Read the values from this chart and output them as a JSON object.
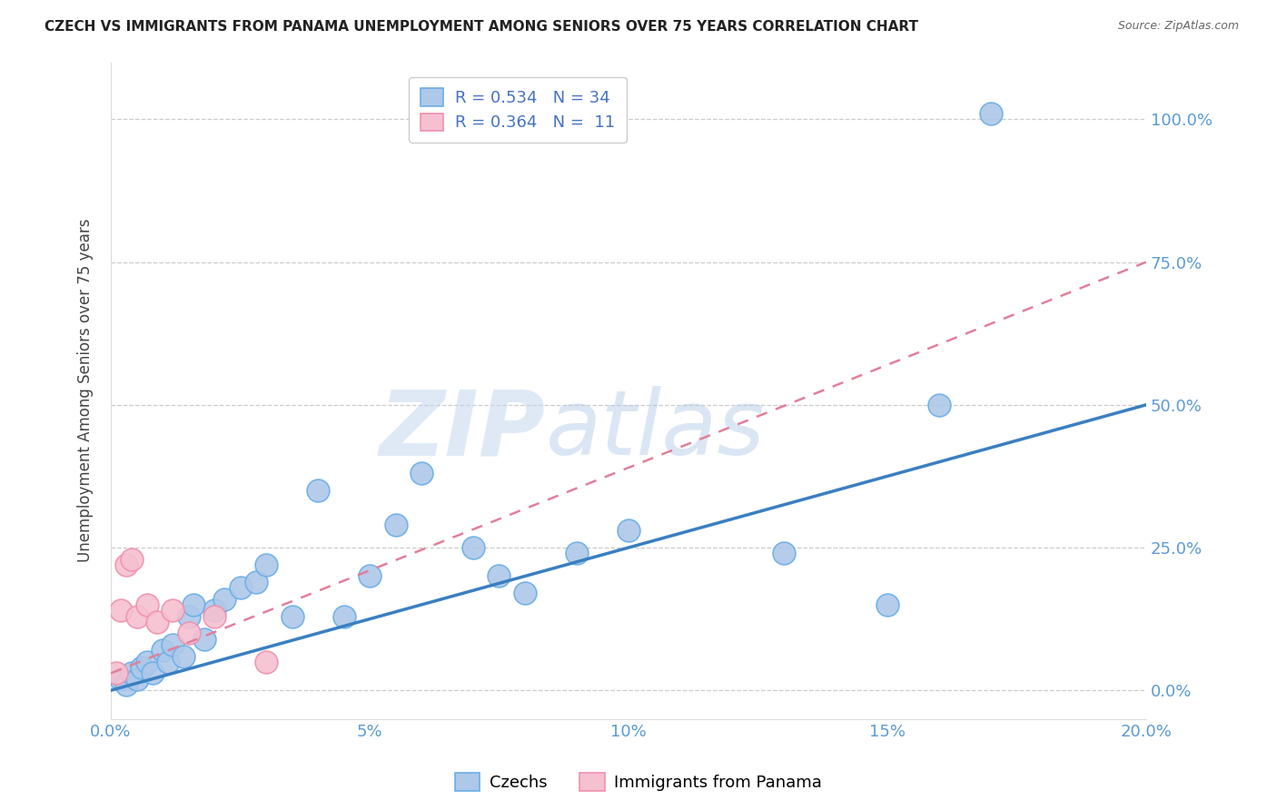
{
  "title": "CZECH VS IMMIGRANTS FROM PANAMA UNEMPLOYMENT AMONG SENIORS OVER 75 YEARS CORRELATION CHART",
  "source": "Source: ZipAtlas.com",
  "xlabel_ticks": [
    "0.0%",
    "5%",
    "10%",
    "15%",
    "20.0%"
  ],
  "xlabel_tick_vals": [
    0.0,
    5.0,
    10.0,
    15.0,
    20.0
  ],
  "ylabel": "Unemployment Among Seniors over 75 years",
  "ylabel_ticks": [
    "0.0%",
    "25.0%",
    "50.0%",
    "75.0%",
    "100.0%"
  ],
  "ylabel_tick_vals": [
    0.0,
    25.0,
    50.0,
    75.0,
    100.0
  ],
  "xlim": [
    0.0,
    20.0
  ],
  "ylim": [
    -5.0,
    110.0
  ],
  "legend_r1": "R = 0.534   N = 34",
  "legend_r2": "R = 0.364   N =  11",
  "czech_color": "#adc8e8",
  "czech_edge_color": "#6aaee8",
  "panama_color": "#f5c0d0",
  "panama_edge_color": "#f090b0",
  "czech_line_color": "#3a7fc1",
  "panama_line_color": "#e0809a",
  "watermark_zip_color": "#c8d8ee",
  "watermark_atlas_color": "#b8cce0",
  "czechs_x": [
    0.2,
    0.3,
    0.4,
    0.5,
    0.6,
    0.7,
    0.8,
    1.0,
    1.1,
    1.2,
    1.4,
    1.5,
    1.6,
    1.8,
    2.0,
    2.2,
    2.5,
    2.8,
    3.0,
    3.5,
    4.0,
    4.5,
    5.0,
    5.5,
    6.0,
    7.0,
    7.5,
    8.0,
    9.0,
    10.0,
    13.0,
    15.0,
    16.0,
    17.0
  ],
  "czechs_y": [
    2.0,
    1.0,
    3.0,
    2.0,
    4.0,
    5.0,
    3.0,
    7.0,
    5.0,
    8.0,
    6.0,
    13.0,
    15.0,
    9.0,
    14.0,
    16.0,
    18.0,
    19.0,
    22.0,
    13.0,
    35.0,
    13.0,
    20.0,
    29.0,
    38.0,
    25.0,
    20.0,
    17.0,
    24.0,
    28.0,
    24.0,
    15.0,
    50.0,
    101.0
  ],
  "panama_x": [
    0.1,
    0.2,
    0.3,
    0.4,
    0.5,
    0.7,
    0.9,
    1.2,
    1.5,
    2.0,
    3.0
  ],
  "panama_y": [
    3.0,
    14.0,
    22.0,
    23.0,
    13.0,
    15.0,
    12.0,
    14.0,
    10.0,
    13.0,
    5.0
  ],
  "czech_line_x0": 0.0,
  "czech_line_y0": 0.0,
  "czech_line_x1": 20.0,
  "czech_line_y1": 50.0,
  "panama_line_x0": 0.0,
  "panama_line_y0": 3.0,
  "panama_line_x1": 20.0,
  "panama_line_y1": 75.0
}
